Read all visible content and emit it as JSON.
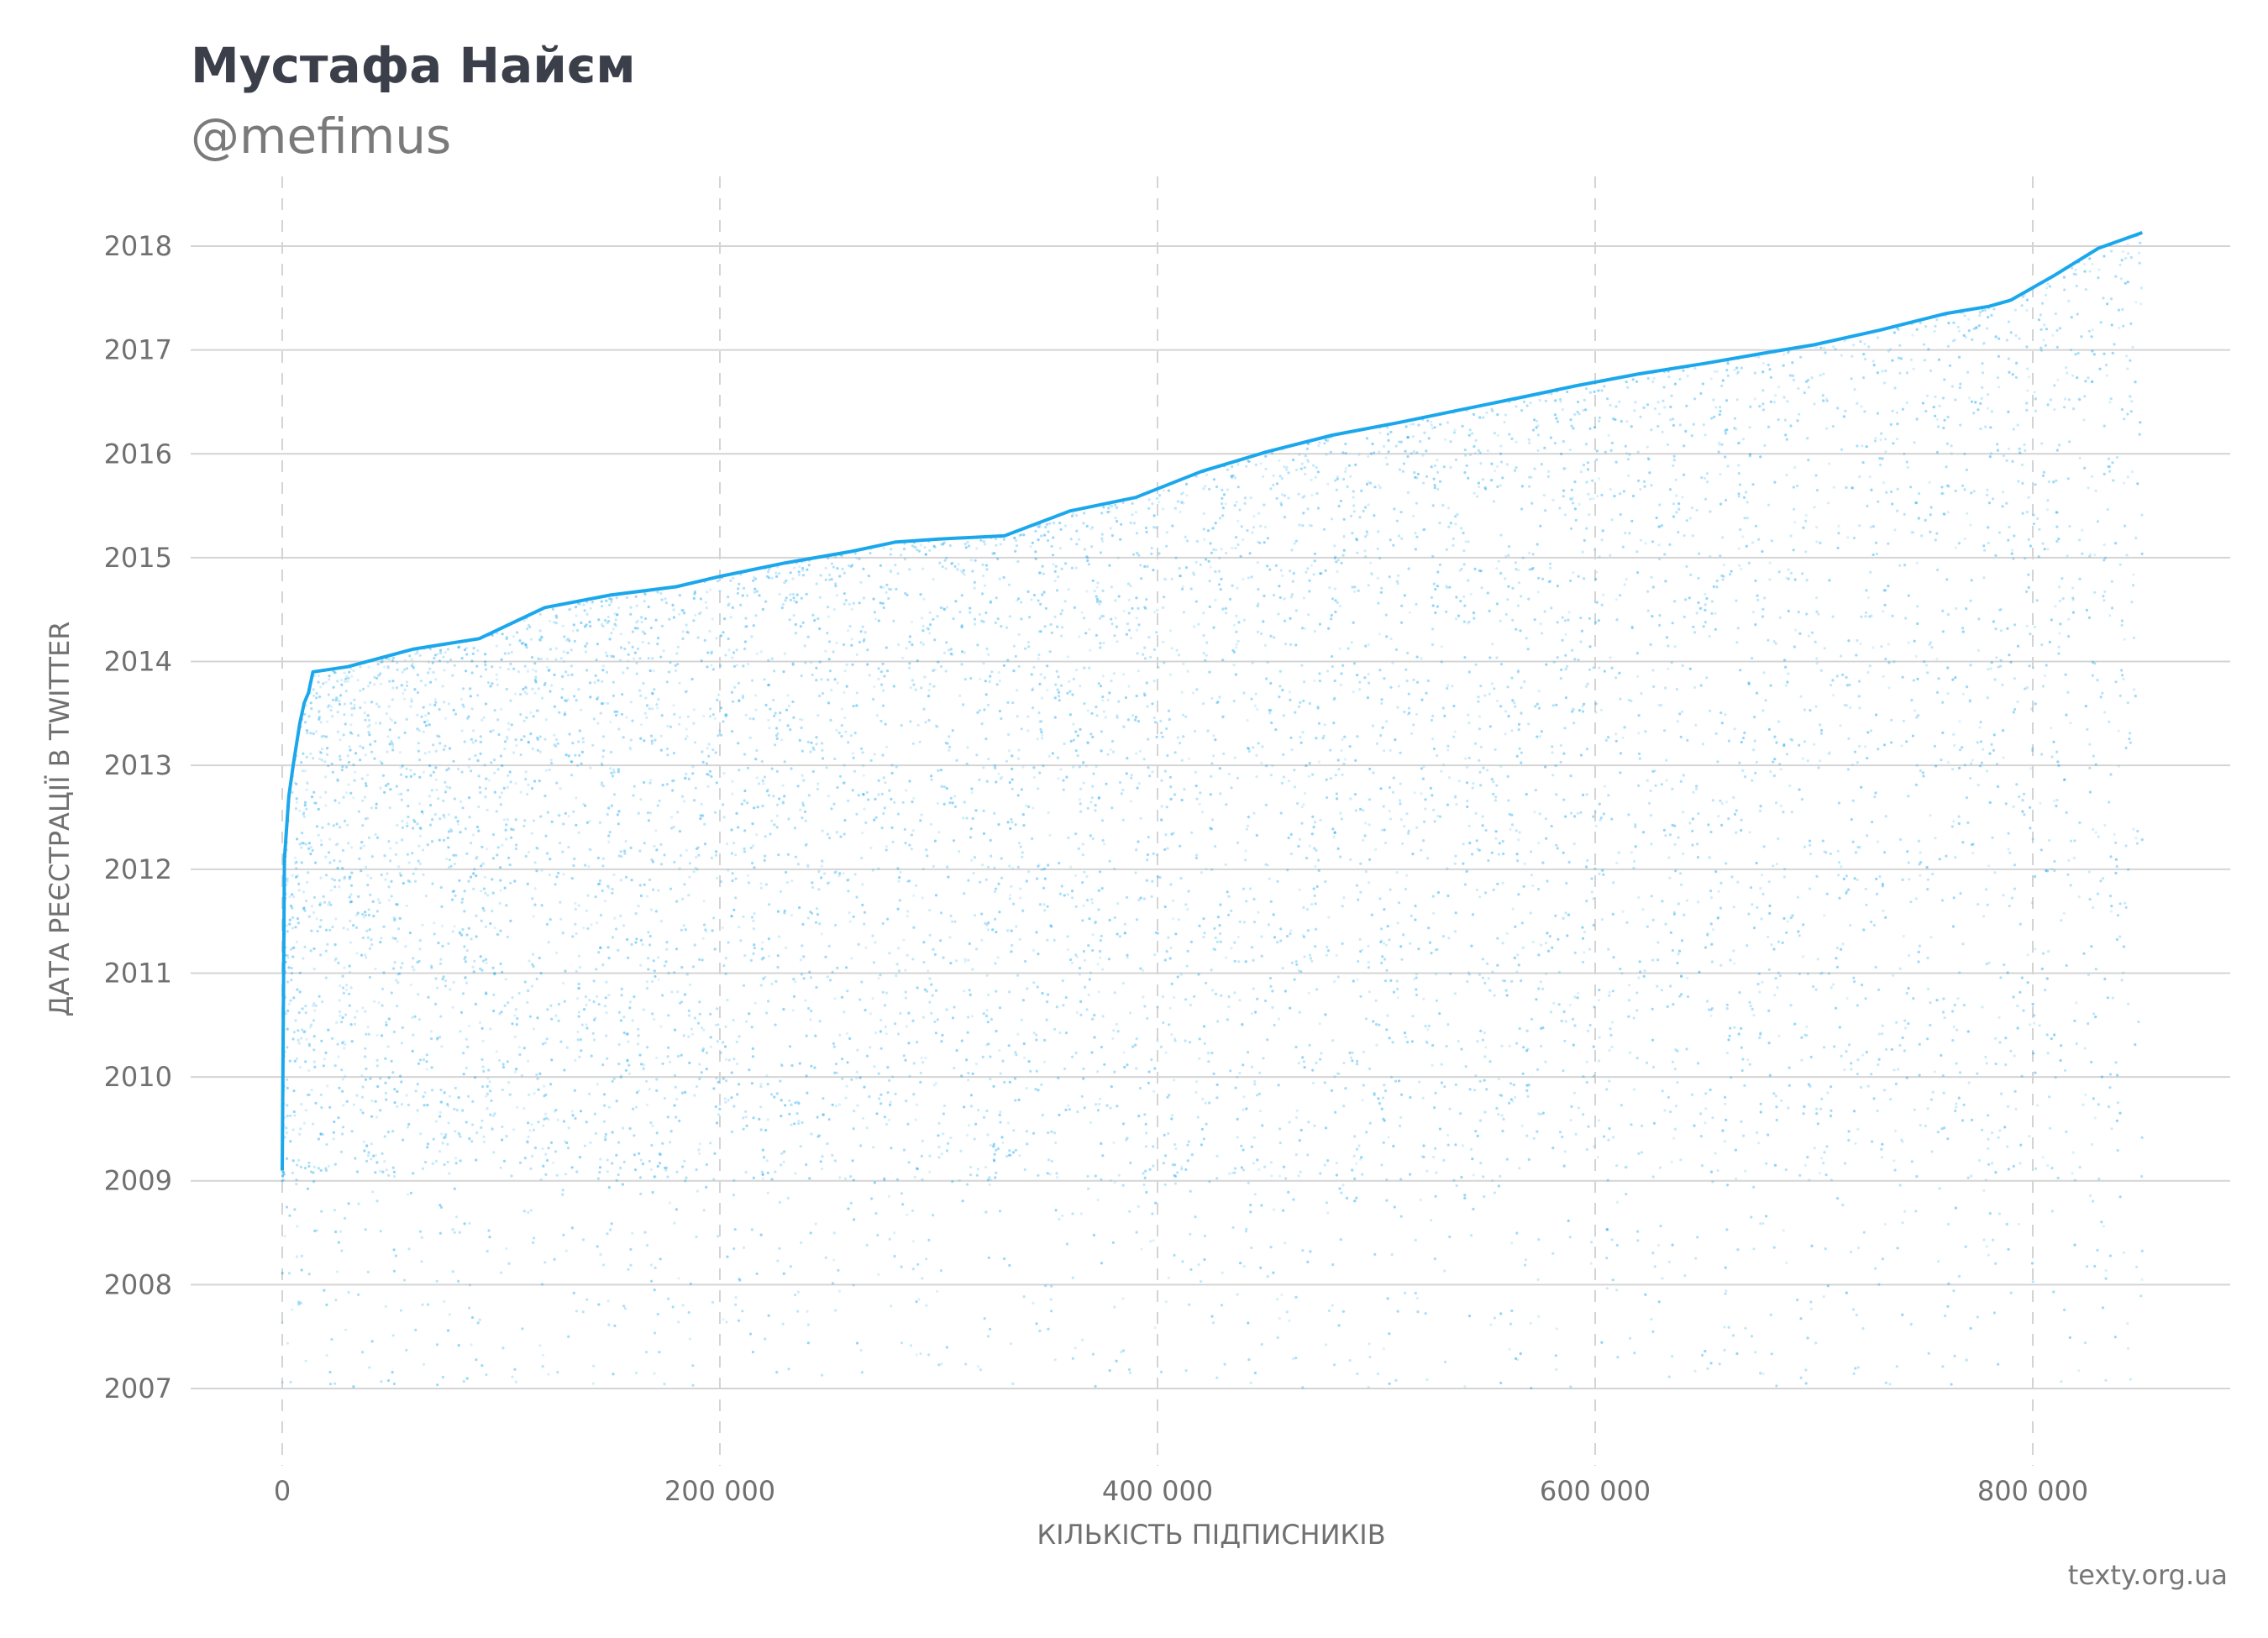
{
  "header": {
    "title": "Мустафа Найєм",
    "subtitle": "@mefimus"
  },
  "footer": {
    "source": "texty.org.ua"
  },
  "colors": {
    "points": "#1aa7ec",
    "grid": "#d4d4d4",
    "axis_text": "#707070",
    "title": "#3b3f4a",
    "subtitle": "#7a7a7a"
  },
  "chart_data": {
    "type": "scatter",
    "title": "Мустафа Найєм",
    "subtitle": "@mefimus",
    "xlabel": "КІЛЬКІСТЬ ПІДПИСНИКІВ",
    "ylabel": "ДАТА РЕЄСТРАЦІЇ В TWITTER",
    "xlim": [
      -42000,
      893000
    ],
    "ylim": [
      2006.35,
      2018.8
    ],
    "x_ticks": [
      0,
      200000,
      400000,
      600000,
      800000
    ],
    "x_tick_labels": [
      "0",
      "200 000",
      "400 000",
      "600 000",
      "800 000"
    ],
    "y_ticks": [
      2007,
      2008,
      2009,
      2010,
      2011,
      2012,
      2013,
      2014,
      2015,
      2016,
      2017,
      2018
    ],
    "y_tick_labels": [
      "2007",
      "2008",
      "2009",
      "2010",
      "2011",
      "2012",
      "2013",
      "2014",
      "2015",
      "2016",
      "2017",
      "2018"
    ],
    "grid": {
      "x": "dashed",
      "y": "solid"
    },
    "series": [
      {
        "upper_envelope": {
          "x": [
            0,
            1000,
            3000,
            5000,
            8000,
            10000,
            12000,
            14000,
            30000,
            60000,
            90000,
            120000,
            150000,
            180000,
            200000,
            230000,
            260000,
            280000,
            300000,
            330000,
            360000,
            390000,
            420000,
            450000,
            480000,
            510000,
            540000,
            570000,
            590000,
            620000,
            650000,
            680000,
            700000,
            730000,
            760000,
            780000,
            790000,
            810000,
            830000,
            850000
          ],
          "y": [
            2009.1,
            2012.1,
            2012.7,
            2013.0,
            2013.4,
            2013.6,
            2013.7,
            2013.9,
            2013.95,
            2014.12,
            2014.22,
            2014.52,
            2014.64,
            2014.72,
            2014.82,
            2014.95,
            2015.06,
            2015.15,
            2015.18,
            2015.21,
            2015.45,
            2015.58,
            2015.83,
            2016.02,
            2016.18,
            2016.3,
            2016.43,
            2016.56,
            2016.65,
            2016.77,
            2016.87,
            2016.98,
            2017.05,
            2017.19,
            2017.35,
            2017.42,
            2017.48,
            2017.72,
            2017.98,
            2018.13
          ]
        },
        "density_note": "",
        "sample_points": []
      }
    ]
  }
}
